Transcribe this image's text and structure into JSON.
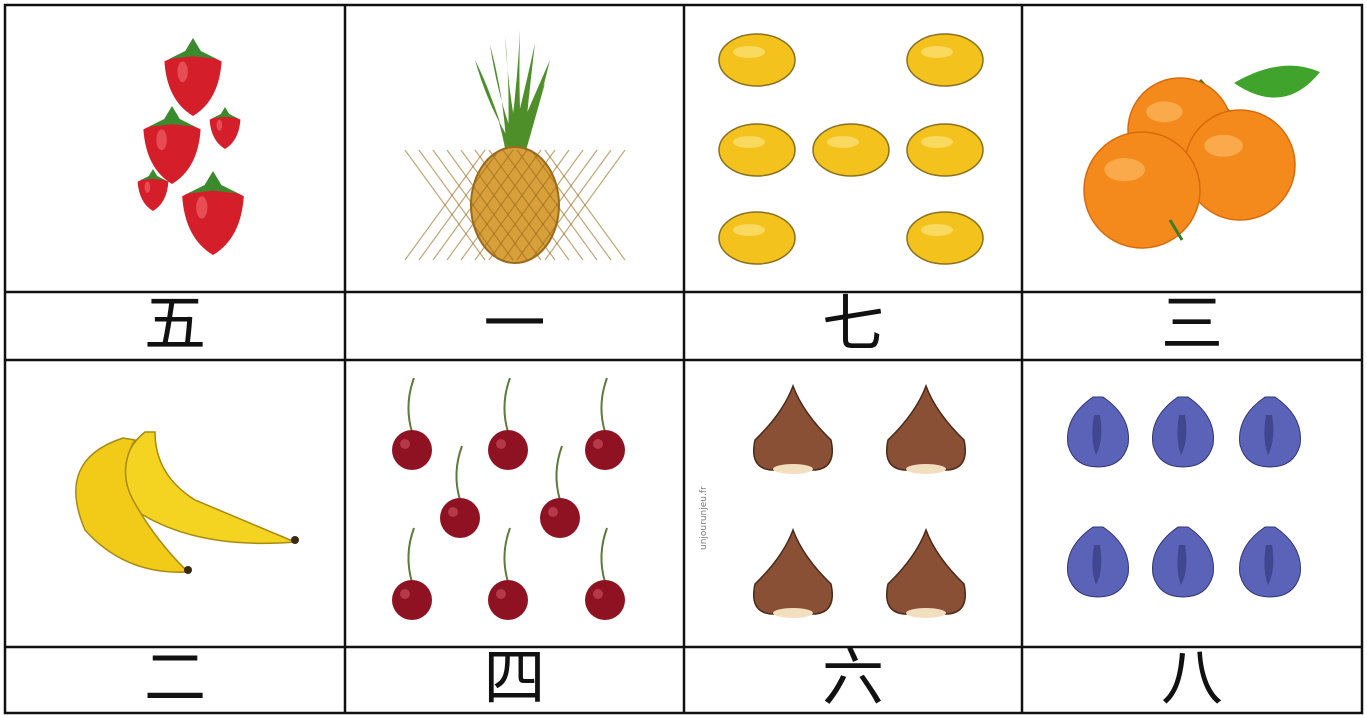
{
  "table": {
    "cells": [
      [
        "五",
        "一",
        "七",
        "三"
      ],
      [
        "二",
        "四",
        "六",
        "八"
      ]
    ]
  },
  "watermark": "unjourunjeu.fr"
}
